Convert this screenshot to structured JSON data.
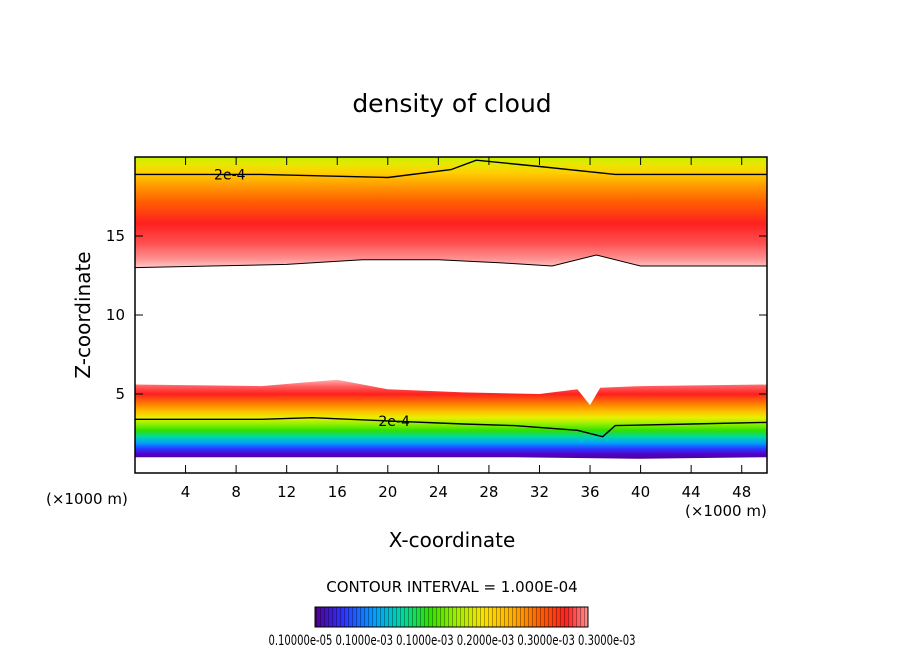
{
  "chart_data": {
    "type": "heatmap",
    "title": "density of cloud",
    "xlabel": "X-coordinate",
    "ylabel": "Z-coordinate",
    "x_unit": "(×1000 m)",
    "y_unit": "(×1000 m)",
    "xlim": [
      0,
      50
    ],
    "ylim": [
      0,
      20
    ],
    "x_ticks": [
      4,
      8,
      12,
      16,
      20,
      24,
      28,
      32,
      36,
      40,
      44,
      48
    ],
    "y_ticks": [
      5,
      10,
      15
    ],
    "contour_interval_text": "CONTOUR INTERVAL = 1.000E-04",
    "contour_labels": [
      {
        "text": "2e-4",
        "x": 7.5,
        "z": 18.9
      },
      {
        "text": "2e-4",
        "x": 20.5,
        "z": 3.3
      }
    ],
    "colorbar_labels_text": "0.10000e-05 0.1000e-03 0.1000e-03 0.2000e-03 0.3000e-03 0.3000e-03",
    "upper_layer": {
      "bottom_z": [
        [
          0,
          13.0
        ],
        [
          6,
          13.1
        ],
        [
          12,
          13.2
        ],
        [
          18,
          13.5
        ],
        [
          24,
          13.5
        ],
        [
          29,
          13.3
        ],
        [
          33,
          13.1
        ],
        [
          36.5,
          13.8
        ],
        [
          40,
          13.1
        ],
        [
          50,
          13.1
        ]
      ],
      "top_z": 20,
      "contour_2e4_z": [
        [
          0,
          18.9
        ],
        [
          10,
          18.9
        ],
        [
          20,
          18.7
        ],
        [
          25,
          19.2
        ],
        [
          27,
          19.8
        ],
        [
          32,
          19.4
        ],
        [
          38,
          18.9
        ],
        [
          50,
          18.9
        ]
      ]
    },
    "lower_layer": {
      "bottom_z": [
        [
          0,
          1.0
        ],
        [
          10,
          1.0
        ],
        [
          20,
          1.0
        ],
        [
          30,
          1.0
        ],
        [
          40,
          0.9
        ],
        [
          50,
          1.0
        ]
      ],
      "top_z": [
        [
          0,
          5.6
        ],
        [
          10,
          5.5
        ],
        [
          13,
          5.7
        ],
        [
          16,
          5.9
        ],
        [
          18,
          5.6
        ],
        [
          20,
          5.3
        ],
        [
          26,
          5.1
        ],
        [
          32,
          5.0
        ],
        [
          35,
          5.3
        ],
        [
          36,
          4.3
        ],
        [
          36.8,
          5.4
        ],
        [
          40,
          5.5
        ],
        [
          50,
          5.6
        ]
      ],
      "contour_2e4_z": [
        [
          0,
          3.4
        ],
        [
          10,
          3.4
        ],
        [
          14,
          3.5
        ],
        [
          20,
          3.3
        ],
        [
          26,
          3.1
        ],
        [
          30,
          3.0
        ],
        [
          35,
          2.7
        ],
        [
          37,
          2.3
        ],
        [
          38,
          3.0
        ],
        [
          44,
          3.1
        ],
        [
          50,
          3.2
        ]
      ]
    }
  }
}
